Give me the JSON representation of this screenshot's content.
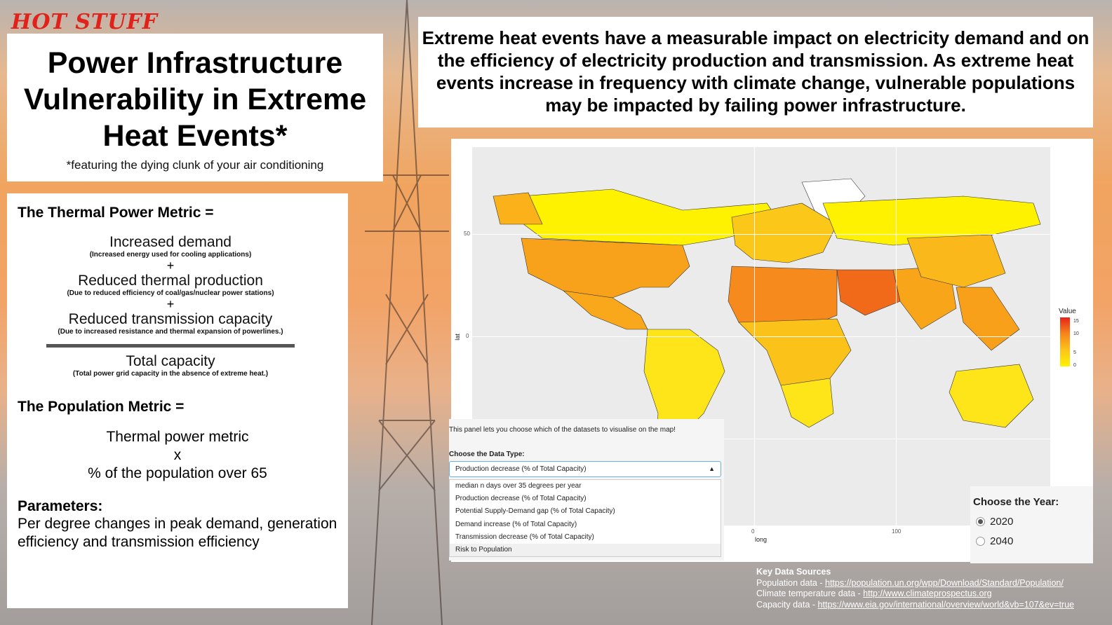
{
  "brand": "HOT STUFF",
  "title": {
    "heading": "Power Infrastructure Vulnerability in Extreme Heat Events*",
    "subtitle": "*featuring the dying clunk of your air conditioning"
  },
  "message": "Extreme heat events have a measurable impact on electricity demand and on the efficiency of electricity production and transmission. As extreme heat events increase in frequency with climate change, vulnerable populations may be impacted by failing power infrastructure.",
  "thermal_metric": {
    "heading": "The Thermal Power Metric =",
    "terms": [
      {
        "label": "Increased demand",
        "note": "(Increased energy used for cooling applications)"
      },
      {
        "label": "Reduced thermal production",
        "note": "(Due to reduced efficiency of coal/gas/nuclear power stations)"
      },
      {
        "label": "Reduced transmission capacity",
        "note": "(Due to increased resistance and thermal expansion of powerlines.)"
      }
    ],
    "plus": "+",
    "denominator": {
      "label": "Total capacity",
      "note": "(Total power grid capacity in the absence of extreme heat.)"
    }
  },
  "population_metric": {
    "heading": "The Population Metric =",
    "line1": "Thermal power metric",
    "line2": "x",
    "line3": "% of the population over 65"
  },
  "parameters": {
    "heading": "Parameters:",
    "body": "Per degree changes in peak demand, generation efficiency and transmission efficiency"
  },
  "map": {
    "y_ticks": [
      "50",
      "0"
    ],
    "x_ticks": [
      "0",
      "100"
    ],
    "xlabel": "long",
    "ylabel": "lat",
    "legend": {
      "title": "Value",
      "ticks": [
        "15",
        "10",
        "5",
        "0"
      ],
      "colors": [
        "#e8231a",
        "#f6861c",
        "#fbc51a",
        "#fff200"
      ]
    }
  },
  "data_type_panel": {
    "intro": "This panel lets you choose which of the datasets to visualise on the map!",
    "label": "Choose the Data Type:",
    "selected": "Production decrease (% of Total Capacity)",
    "options": [
      "median n days over 35 degrees per year",
      "Production decrease (% of Total Capacity)",
      "Potential Supply-Demand gap (% of Total Capacity)",
      "Demand increase (% of Total Capacity)",
      "Transmission decrease (% of Total Capacity)",
      "Risk to Population"
    ]
  },
  "year_panel": {
    "label": "Choose the Year:",
    "options": [
      "2020",
      "2040"
    ],
    "selected": "2020"
  },
  "sources": {
    "heading": "Key Data Sources",
    "items": [
      {
        "label": "Population data - ",
        "link": "https://population.un.org/wpp/Download/Standard/Population/"
      },
      {
        "label": "Climate temperature data - ",
        "link": "http://www.climateprospectus.org"
      },
      {
        "label": "Capacity data - ",
        "link": "https://www.eia.gov/international/overview/world&vb=107&ev=true"
      }
    ]
  }
}
